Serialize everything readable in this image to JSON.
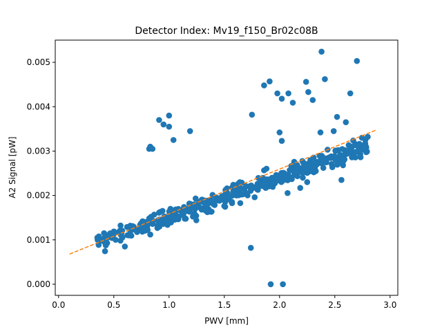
{
  "chart_data": {
    "type": "scatter",
    "title": "Detector Index: Mv19_f150_Br02c08B",
    "xlabel": "PWV [mm]",
    "ylabel": "A2 Signal [pW]",
    "xlim": [
      -0.03,
      3.07
    ],
    "ylim": [
      -0.00025,
      0.0055
    ],
    "xticks": [
      0.0,
      0.5,
      1.0,
      1.5,
      2.0,
      2.5,
      3.0
    ],
    "xtick_labels": [
      "0.0",
      "0.5",
      "1.0",
      "1.5",
      "2.0",
      "2.5",
      "3.0"
    ],
    "yticks": [
      0.0,
      0.001,
      0.002,
      0.003,
      0.004,
      0.005
    ],
    "ytick_labels": [
      "0.000",
      "0.001",
      "0.002",
      "0.003",
      "0.004",
      "0.005"
    ],
    "colors": {
      "points": "#1f77b4",
      "fit": "#ff7f0e",
      "axes": "#000000"
    },
    "fit_line": {
      "name": "linear fit",
      "x": [
        0.1,
        2.88
      ],
      "y": [
        0.00068,
        0.00348
      ]
    },
    "outliers": {
      "x": [
        0.91,
        0.95,
        1.0,
        1.0,
        1.04,
        0.82,
        0.85,
        0.83,
        1.19,
        1.75,
        1.86,
        1.91,
        1.98,
        2.02,
        2.08,
        2.12,
        2.0,
        2.26,
        2.24,
        2.3,
        2.38,
        2.41,
        2.52,
        2.64,
        2.7,
        2.6,
        2.37,
        2.49,
        2.02,
        1.74,
        1.92,
        2.03,
        0.6,
        0.83,
        2.25,
        2.56
      ],
      "y": [
        0.0037,
        0.0036,
        0.0038,
        0.00355,
        0.00325,
        0.00305,
        0.00305,
        0.0031,
        0.00345,
        0.00382,
        0.00448,
        0.00457,
        0.0043,
        0.00418,
        0.0043,
        0.00409,
        0.00342,
        0.00433,
        0.00456,
        0.00415,
        0.00524,
        0.00462,
        0.00377,
        0.0043,
        0.00503,
        0.00365,
        0.00342,
        0.00345,
        0.00323,
        0.00082,
        0.0,
        0.0,
        0.00085,
        0.00112,
        0.0023,
        0.00235
      ]
    },
    "cluster": {
      "x_range": [
        0.33,
        2.8
      ],
      "count": 440,
      "center_a": 0.00065,
      "center_b": 0.00088,
      "spread": 0.0001
    }
  }
}
